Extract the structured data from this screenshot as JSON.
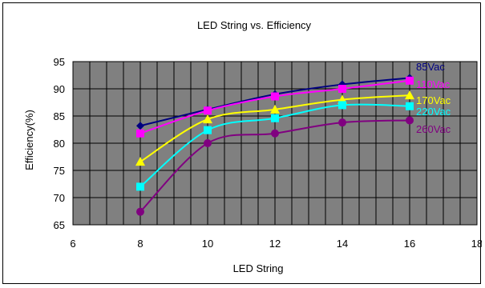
{
  "chart_data": {
    "type": "line",
    "title": "LED String vs. Efficiency",
    "xlabel": "LED String",
    "ylabel": "Efficiency(%)",
    "xlim": [
      6,
      18
    ],
    "ylim": [
      65,
      95
    ],
    "xticks": [
      "6",
      "8",
      "10",
      "12",
      "14",
      "16",
      "18"
    ],
    "yticks": [
      "65",
      "70",
      "75",
      "80",
      "85",
      "90",
      "95"
    ],
    "grid": true,
    "plot_background": "#808080",
    "x": [
      8,
      10,
      12,
      14,
      16
    ],
    "series": [
      {
        "name": "85Vac",
        "color": "#000080",
        "marker": "diamond",
        "values": [
          83.2,
          86.2,
          89.0,
          90.8,
          92.0
        ]
      },
      {
        "name": "110Vac",
        "color": "#ff00ff",
        "marker": "square",
        "values": [
          81.8,
          86.0,
          88.6,
          90.0,
          91.5
        ]
      },
      {
        "name": "170Vac",
        "color": "#ffff00",
        "marker": "triangle",
        "values": [
          76.6,
          84.4,
          86.2,
          88.0,
          88.8
        ]
      },
      {
        "name": "220Vac",
        "color": "#00ffff",
        "marker": "x",
        "values": [
          72.0,
          82.4,
          84.6,
          87.0,
          86.8
        ]
      },
      {
        "name": "260Vac",
        "color": "#800080",
        "marker": "circle",
        "values": [
          67.4,
          80.0,
          81.8,
          83.8,
          84.2
        ]
      }
    ]
  }
}
